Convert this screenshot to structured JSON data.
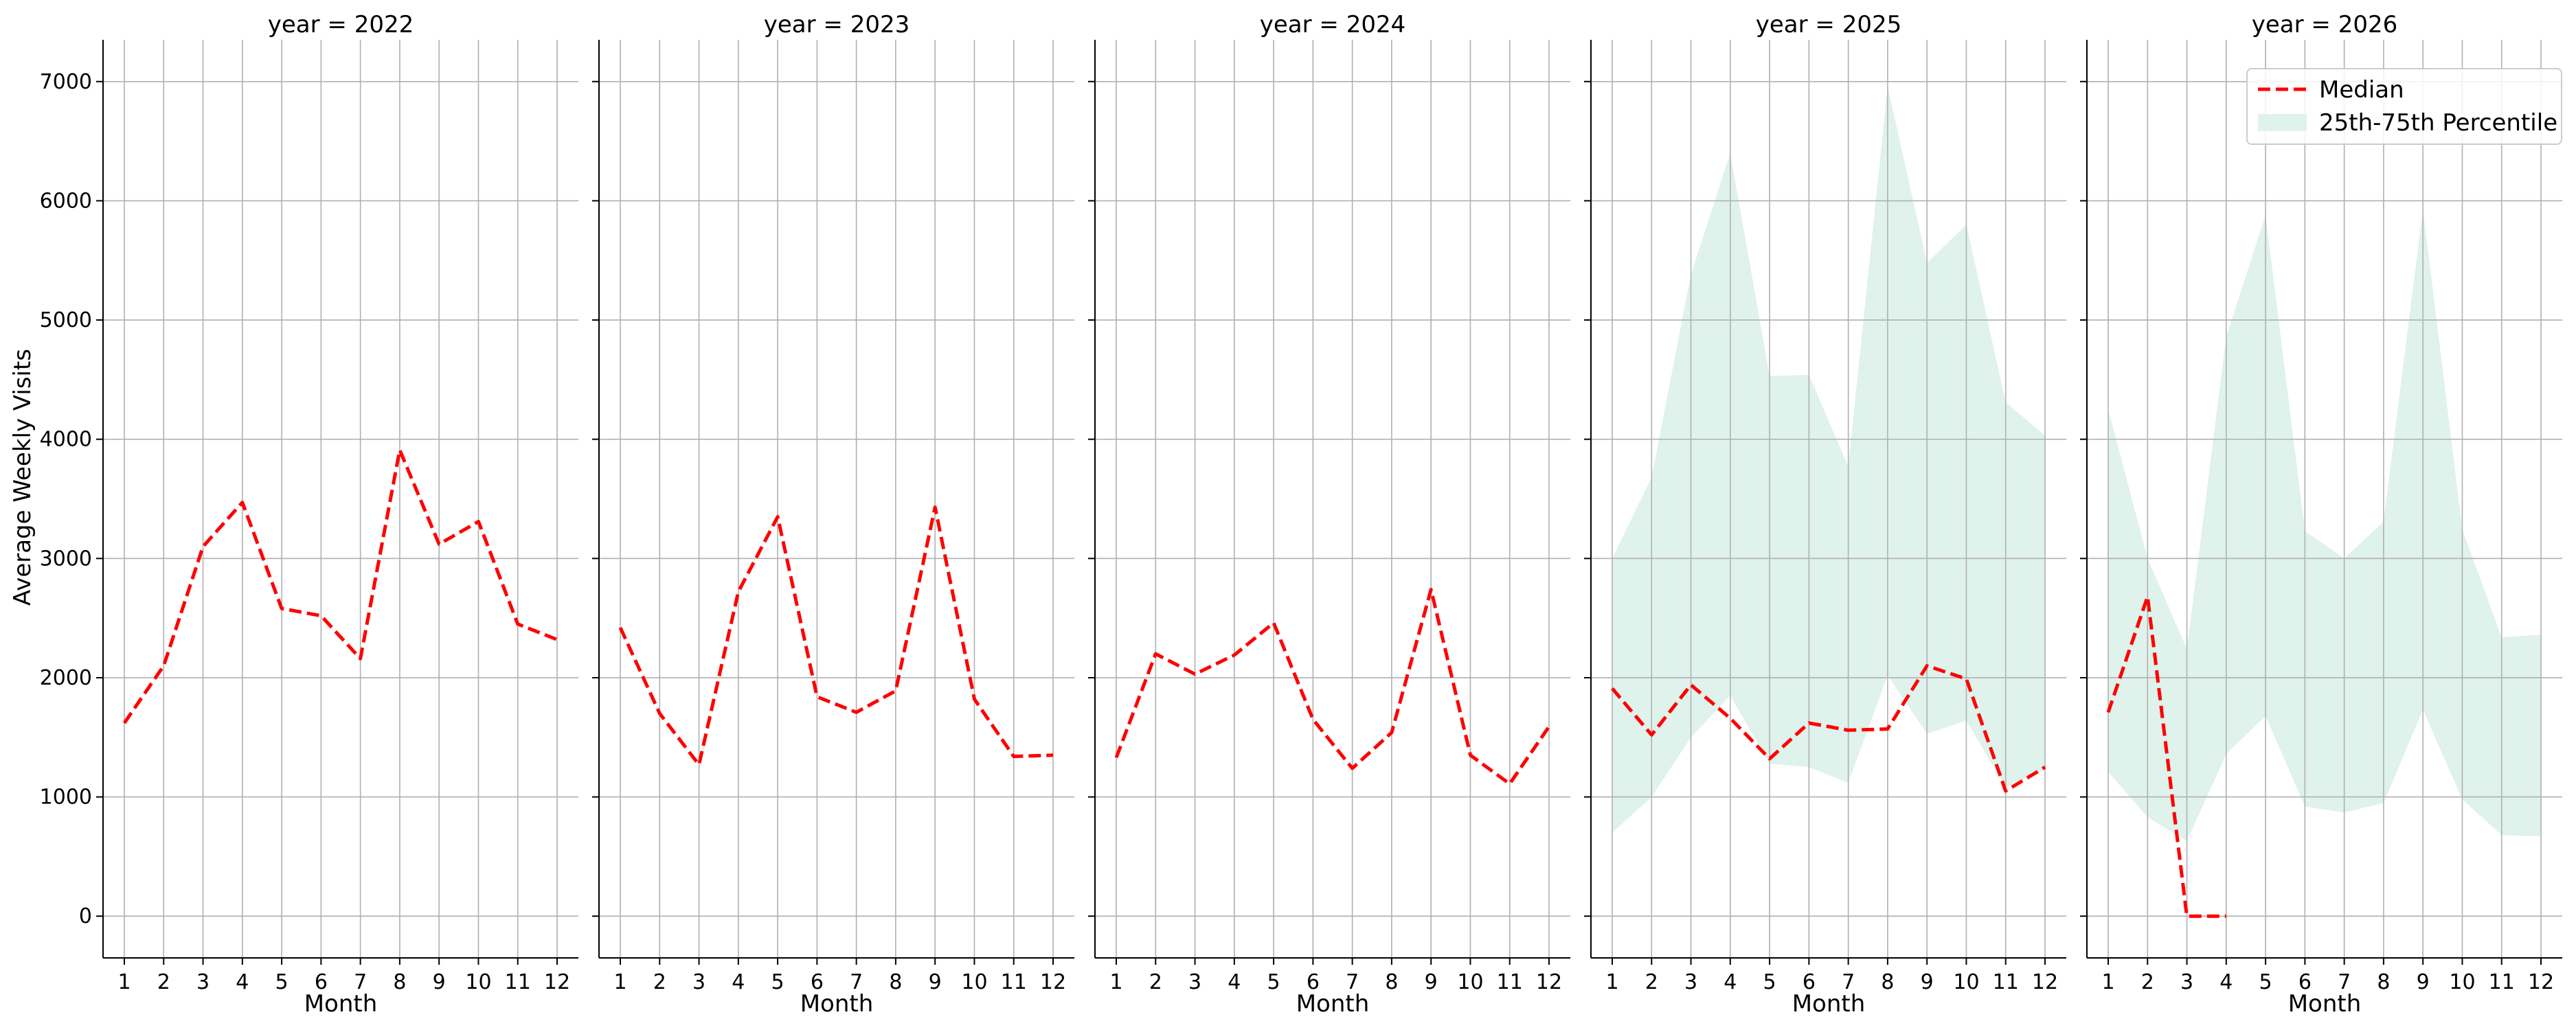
{
  "chart_data": {
    "type": "line",
    "facet_variable": "year",
    "ylabel": "Average Weekly Visits",
    "xlabel": "Month",
    "x": [
      1,
      2,
      3,
      4,
      5,
      6,
      7,
      8,
      9,
      10,
      11,
      12
    ],
    "ylim": [
      -350,
      7350
    ],
    "yticks": [
      0,
      1000,
      2000,
      3000,
      4000,
      5000,
      6000,
      7000
    ],
    "grid": true,
    "legend_placement": "top-right",
    "legend": {
      "median_label": "Median",
      "band_label": "25th-75th Percentile"
    },
    "colors": {
      "median": "#ff0000",
      "band": "#dff2ec",
      "grid": "#b0b0b0"
    },
    "facets": [
      {
        "title": "year = 2022",
        "median": [
          1620,
          2100,
          3100,
          3470,
          2580,
          2520,
          2160,
          3910,
          3120,
          3310,
          2450,
          2320
        ],
        "q25": null,
        "q75": null
      },
      {
        "title": "year = 2023",
        "median": [
          2420,
          1700,
          1270,
          2720,
          3350,
          1840,
          1710,
          1890,
          3430,
          1820,
          1340,
          1350
        ],
        "q25": null,
        "q75": null
      },
      {
        "title": "year = 2024",
        "median": [
          1330,
          2200,
          2030,
          2190,
          2460,
          1650,
          1240,
          1540,
          2740,
          1350,
          1110,
          1590
        ],
        "q25": null,
        "q75": null
      },
      {
        "title": "year = 2025",
        "median": [
          1910,
          1520,
          1940,
          1660,
          1320,
          1620,
          1560,
          1570,
          2100,
          1990,
          1050,
          1250
        ],
        "q25": [
          700,
          1000,
          1500,
          1850,
          1280,
          1250,
          1120,
          2020,
          1530,
          1640,
          1080,
          1230
        ],
        "q75": [
          3000,
          3680,
          5380,
          6400,
          4530,
          4540,
          3770,
          6960,
          5480,
          5800,
          4310,
          4030
        ]
      },
      {
        "title": "year = 2026",
        "median": [
          1710,
          2680,
          0,
          0,
          null,
          null,
          null,
          null,
          null,
          null,
          null,
          null
        ],
        "q25": [
          1210,
          830,
          630,
          1360,
          1680,
          920,
          870,
          950,
          1730,
          980,
          680,
          670
        ],
        "q75": [
          4250,
          3000,
          2240,
          4860,
          5880,
          3230,
          3000,
          3310,
          5930,
          3240,
          2340,
          2360
        ]
      }
    ]
  }
}
